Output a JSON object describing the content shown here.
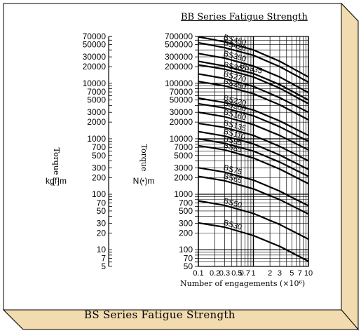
{
  "page_title": "BB Series Fatigue Strength",
  "caption": "BS Series Fatigue Strength",
  "colors": {
    "frame_fill": "#fdf0d6",
    "frame_shadow": "#f2dcaf",
    "ink": "#000000",
    "grid": "#000000"
  },
  "chart_data": {
    "type": "line",
    "title": "BB Series Fatigue Strength",
    "xlabel": "Number of engagements",
    "xlabel_exponent": "(×10⁶)",
    "x_scale": "log",
    "xlim": [
      0.1,
      10
    ],
    "x_ticks": [
      "0.1",
      "0.2",
      "0.3",
      "0.5",
      "0.7",
      "1",
      "2",
      "3",
      "5",
      "7",
      "10"
    ],
    "y_scale": "log",
    "ylim_nm": [
      50,
      700000
    ],
    "ylim_kgfm": [
      5,
      70000
    ],
    "left_axis": {
      "label": "Torque",
      "unit": "kgf·m",
      "ticks": [
        "70000",
        "50000",
        "30000",
        "20000",
        "10000",
        "7000",
        "5000",
        "3000",
        "2000",
        "1000",
        "700",
        "500",
        "300",
        "200",
        "100",
        "70",
        "50",
        "30",
        "20",
        "10",
        "7",
        "5"
      ]
    },
    "right_axis": {
      "label": "Torque",
      "unit": "N・m",
      "ticks": [
        "700000",
        "500000",
        "300000",
        "200000",
        "100000",
        "70000",
        "50000",
        "30000",
        "20000",
        "10000",
        "7000",
        "5000",
        "3000",
        "2000",
        "1000",
        "700",
        "500",
        "300",
        "200",
        "100",
        "70",
        "50"
      ]
    },
    "grid": true,
    "series": [
      {
        "name": "BS450",
        "points": [
          [
            0.1,
            690000
          ],
          [
            0.3,
            560000
          ],
          [
            1,
            400000
          ],
          [
            3,
            250000
          ],
          [
            10,
            130000
          ]
        ]
      },
      {
        "name": "BS420",
        "points": [
          [
            0.1,
            540000
          ],
          [
            0.3,
            440000
          ],
          [
            1,
            320000
          ],
          [
            3,
            200000
          ],
          [
            10,
            105000
          ]
        ]
      },
      {
        "name": "BS350",
        "points": [
          [
            0.1,
            345000
          ],
          [
            0.3,
            285000
          ],
          [
            1,
            205000
          ],
          [
            3,
            130000
          ],
          [
            10,
            68000
          ]
        ]
      },
      {
        "name": "BS335",
        "points": [
          [
            0.1,
            250000
          ],
          [
            0.3,
            205000
          ],
          [
            1,
            150000
          ],
          [
            3,
            95000
          ],
          [
            10,
            50000
          ]
        ]
      },
      {
        "name": "BS300",
        "points": [
          [
            0.1,
            215000
          ],
          [
            0.3,
            180000
          ],
          [
            1,
            130000
          ],
          [
            3,
            82000
          ],
          [
            10,
            43000
          ]
        ]
      },
      {
        "name": "BS270",
        "points": [
          [
            0.1,
            148000
          ],
          [
            0.3,
            122000
          ],
          [
            1,
            88000
          ],
          [
            3,
            55000
          ],
          [
            10,
            30000
          ]
        ]
      },
      {
        "name": "BS250",
        "points": [
          [
            0.1,
            108000
          ],
          [
            0.3,
            90000
          ],
          [
            1,
            65000
          ],
          [
            3,
            41000
          ],
          [
            10,
            22000
          ]
        ]
      },
      {
        "name": "BS220",
        "points": [
          [
            0.1,
            54000
          ],
          [
            0.3,
            45000
          ],
          [
            1,
            33000
          ],
          [
            3,
            21000
          ],
          [
            10,
            11500
          ]
        ]
      },
      {
        "name": "BS200",
        "points": [
          [
            0.1,
            43000
          ],
          [
            0.3,
            36000
          ],
          [
            1,
            26000
          ],
          [
            3,
            16500
          ],
          [
            10,
            9000
          ]
        ]
      },
      {
        "name": "BS160",
        "points": [
          [
            0.1,
            30000
          ],
          [
            0.3,
            25000
          ],
          [
            1,
            18000
          ],
          [
            3,
            11500
          ],
          [
            10,
            6300
          ]
        ]
      },
      {
        "name": "BS135",
        "points": [
          [
            0.1,
            19000
          ],
          [
            0.3,
            16000
          ],
          [
            1,
            11500
          ],
          [
            3,
            7300
          ],
          [
            10,
            4000
          ]
        ]
      },
      {
        "name": "BS110",
        "points": [
          [
            0.1,
            13500
          ],
          [
            0.3,
            11200
          ],
          [
            1,
            8100
          ],
          [
            3,
            5100
          ],
          [
            10,
            2800
          ]
        ]
      },
      {
        "name": "BS95",
        "points": [
          [
            0.1,
            10000
          ],
          [
            0.3,
            8300
          ],
          [
            1,
            6000
          ],
          [
            3,
            3800
          ],
          [
            10,
            2100
          ]
        ]
      },
      {
        "name": "BS85",
        "points": [
          [
            0.1,
            7500
          ],
          [
            0.3,
            6300
          ],
          [
            1,
            4500
          ],
          [
            3,
            2850
          ],
          [
            10,
            1550
          ]
        ]
      },
      {
        "name": "BS75",
        "points": [
          [
            0.1,
            3000
          ],
          [
            0.3,
            2500
          ],
          [
            1,
            1800
          ],
          [
            3,
            1140
          ],
          [
            10,
            620
          ]
        ]
      },
      {
        "name": "BS65",
        "points": [
          [
            0.1,
            2100
          ],
          [
            0.3,
            1750
          ],
          [
            1,
            1250
          ],
          [
            3,
            800
          ],
          [
            10,
            440
          ]
        ]
      },
      {
        "name": "BS50",
        "points": [
          [
            0.1,
            760
          ],
          [
            0.3,
            630
          ],
          [
            1,
            450
          ],
          [
            3,
            285
          ],
          [
            10,
            155
          ]
        ]
      },
      {
        "name": "BS30",
        "points": [
          [
            0.1,
            305
          ],
          [
            0.3,
            255
          ],
          [
            1,
            180
          ],
          [
            3,
            115
          ],
          [
            10,
            62
          ]
        ]
      }
    ]
  }
}
